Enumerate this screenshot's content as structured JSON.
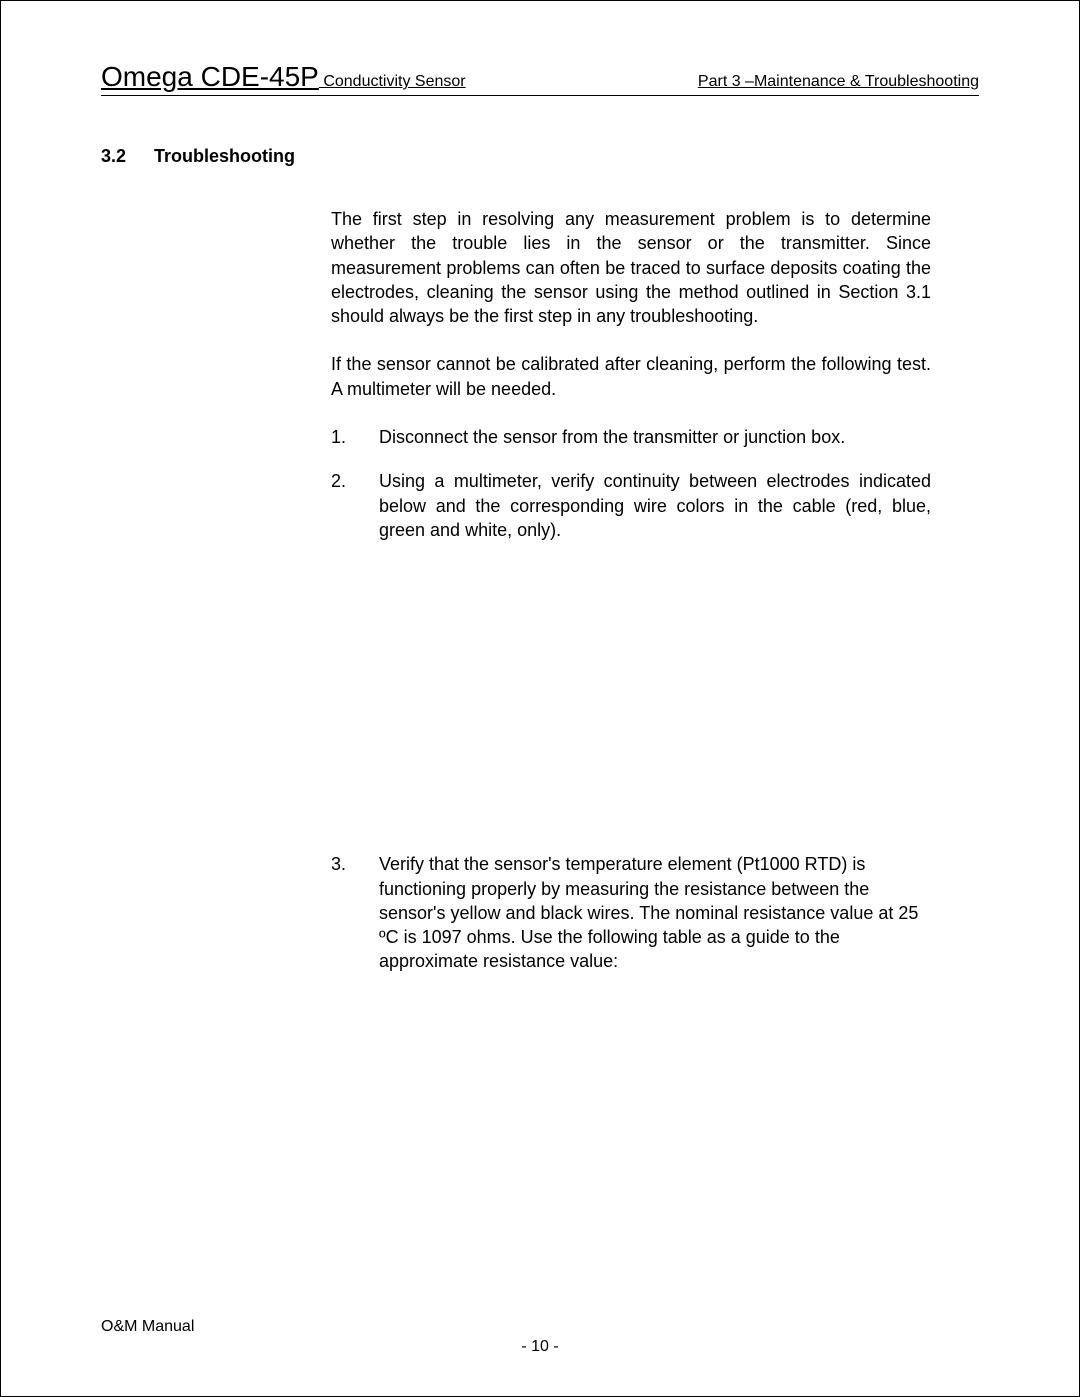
{
  "header": {
    "product": "Omega CDE-45P",
    "subtitle": " Conductivity Sensor",
    "right": "Part 3 –Maintenance & Troubleshooting"
  },
  "section": {
    "number": "3.2",
    "title": "Troubleshooting"
  },
  "paragraphs": {
    "p1": "The first step in resolving any measurement problem is to determine whether the trouble lies in the sensor or the transmitter.  Since measurement problems can often be traced to surface deposits coating the electrodes, cleaning the sensor using the method outlined in Section 3.1 should always be the first step in any troubleshooting.",
    "p2": "If the sensor cannot be calibrated after cleaning, perform the following test.  A multimeter will be needed."
  },
  "list": {
    "i1": {
      "num": "1.",
      "text": "Disconnect the sensor from the transmitter or junction box."
    },
    "i2": {
      "num": "2.",
      "text": "Using a multimeter, verify continuity between electrodes indicated below and the corresponding wire colors in the cable (red, blue, green and white, only)."
    },
    "i3": {
      "num": "3.",
      "text": "Verify that the sensor's temperature element (Pt1000 RTD) is functioning properly by measuring the resistance between the sensor's yellow and black wires.  The nominal resistance value at 25 ºC is 1097 ohms.  Use the following table as a guide to the  approximate resistance value:"
    }
  },
  "footer": {
    "left": "O&M Manual",
    "center": "- 10 -"
  }
}
